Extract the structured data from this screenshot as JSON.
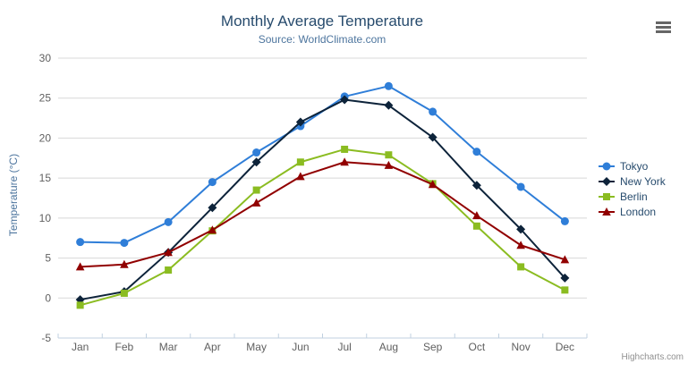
{
  "chart_data": {
    "type": "line",
    "title": "Monthly Average Temperature",
    "subtitle": "Source: WorldClimate.com",
    "categories": [
      "Jan",
      "Feb",
      "Mar",
      "Apr",
      "May",
      "Jun",
      "Jul",
      "Aug",
      "Sep",
      "Oct",
      "Nov",
      "Dec"
    ],
    "xlabel": "",
    "ylabel": "Temperature (°C)",
    "ylim": [
      -5,
      30
    ],
    "ytick_interval": 5,
    "grid": true,
    "legend_position": "right",
    "series": [
      {
        "name": "Tokyo",
        "color": "#2f7ed8",
        "marker": "circle",
        "values": [
          7.0,
          6.9,
          9.5,
          14.5,
          18.2,
          21.5,
          25.2,
          26.5,
          23.3,
          18.3,
          13.9,
          9.6
        ]
      },
      {
        "name": "New York",
        "color": "#0d233a",
        "marker": "diamond",
        "values": [
          -0.2,
          0.8,
          5.7,
          11.3,
          17.0,
          22.0,
          24.8,
          24.1,
          20.1,
          14.1,
          8.6,
          2.5
        ]
      },
      {
        "name": "Berlin",
        "color": "#8bbc21",
        "marker": "square",
        "values": [
          -0.9,
          0.6,
          3.5,
          8.4,
          13.5,
          17.0,
          18.6,
          17.9,
          14.3,
          9.0,
          3.9,
          1.0
        ]
      },
      {
        "name": "London",
        "color": "#910000",
        "marker": "triangle",
        "values": [
          3.9,
          4.2,
          5.7,
          8.5,
          11.9,
          15.2,
          17.0,
          16.6,
          14.2,
          10.3,
          6.6,
          4.8
        ]
      }
    ],
    "credits": "Highcharts.com"
  },
  "icons": {
    "context_menu": "hamburger-icon"
  },
  "colors": {
    "background": "#ffffff",
    "title": "#274b6d",
    "subtitle": "#4d759e",
    "axis_title": "#4d759e",
    "tick_label": "#606060",
    "grid_line": "#d8d8d8",
    "axis_line": "#c0d0e0",
    "legend_text": "#274b6d",
    "credits": "#909090",
    "context_button": "#666666"
  }
}
